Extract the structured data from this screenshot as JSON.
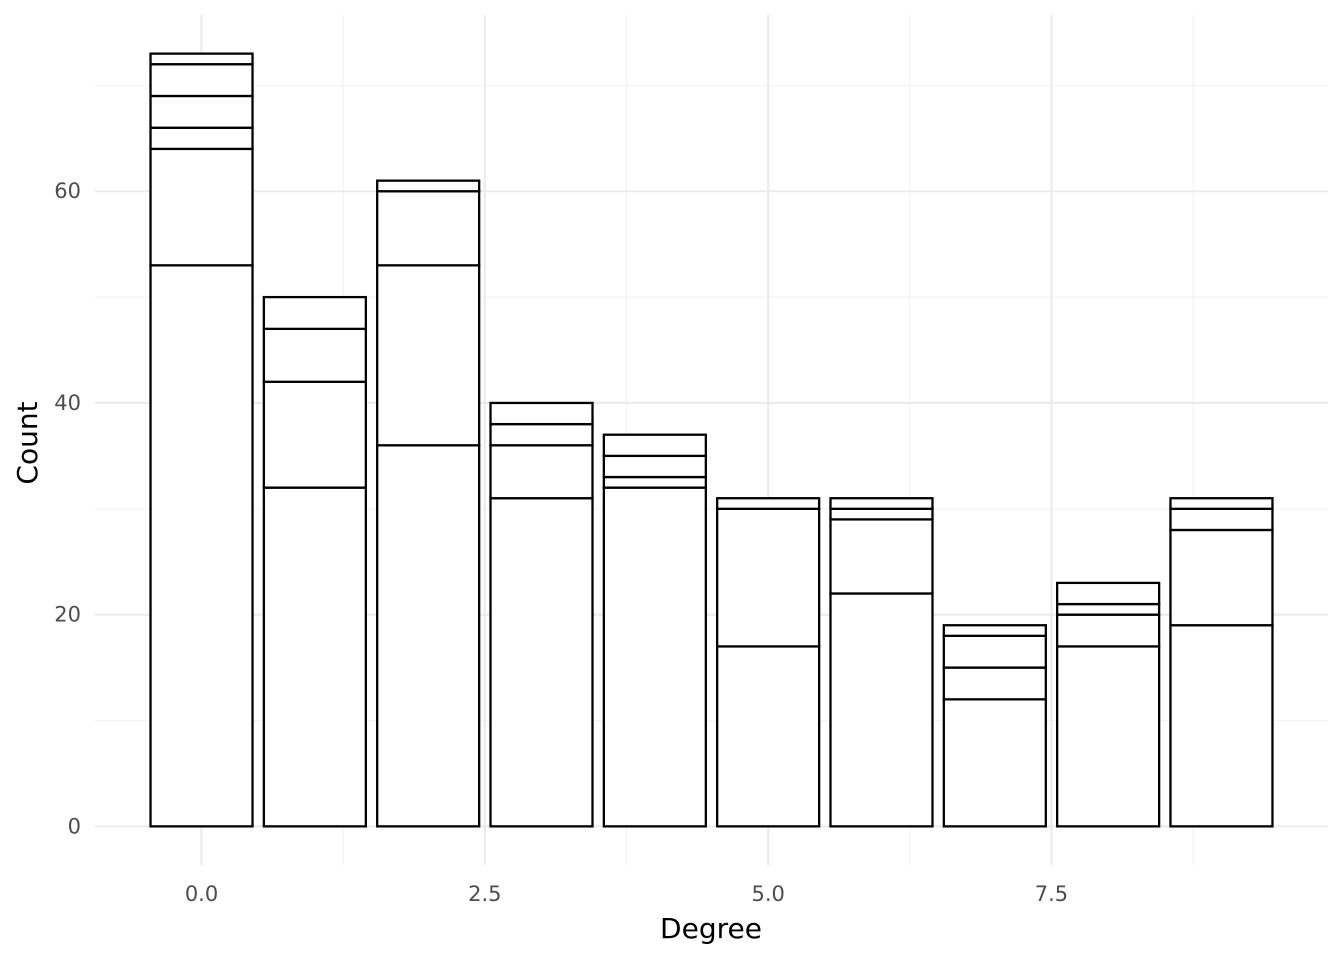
{
  "chart_data": {
    "type": "bar",
    "stacked": true,
    "xlabel": "Degree",
    "ylabel": "Count",
    "x": [
      0,
      1,
      2,
      3,
      4,
      5,
      6,
      7,
      8,
      9
    ],
    "stack_boundaries": [
      [
        53,
        64,
        66,
        69,
        72,
        73
      ],
      [
        32,
        42,
        47,
        50
      ],
      [
        36,
        53,
        60,
        61
      ],
      [
        31,
        36,
        38,
        40
      ],
      [
        32,
        33,
        35,
        37
      ],
      [
        17,
        30,
        31
      ],
      [
        22,
        29,
        30,
        31
      ],
      [
        12,
        15,
        18,
        19
      ],
      [
        17,
        20,
        21,
        23
      ],
      [
        19,
        28,
        30,
        31
      ]
    ],
    "totals": [
      73,
      50,
      61,
      40,
      37,
      31,
      31,
      19,
      23,
      31
    ],
    "xlim": [
      -0.94,
      9.94
    ],
    "ylim": [
      -3.65,
      76.65
    ],
    "x_ticks": [
      0,
      2.5,
      5,
      7.5
    ],
    "x_tick_labels": [
      "0.0",
      "2.5",
      "5.0",
      "7.5"
    ],
    "y_ticks": [
      0,
      20,
      40,
      60
    ],
    "y_tick_labels": [
      "0",
      "20",
      "40",
      "60"
    ],
    "grid": true,
    "bar_fill": "#ffffff",
    "bar_outline": "#000000"
  }
}
